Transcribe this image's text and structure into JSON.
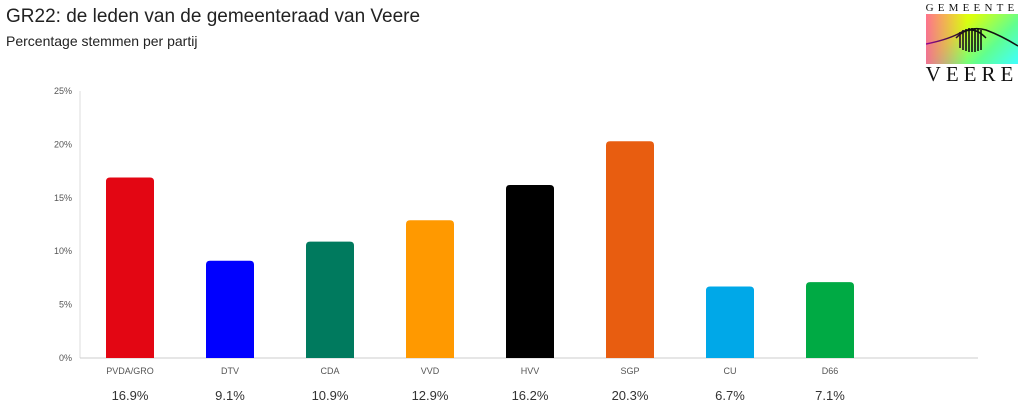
{
  "header": {
    "title": "GR22: de leden van de gemeenteraad van Veere",
    "subtitle": "Percentage stemmen per partij"
  },
  "logo": {
    "top_text": "GEMEENTE",
    "bottom_text": "VEERE"
  },
  "chart_data": {
    "type": "bar",
    "title": "GR22: de leden van de gemeenteraad van Veere",
    "subtitle": "Percentage stemmen per partij",
    "xlabel": "",
    "ylabel": "",
    "ylim": [
      0,
      25
    ],
    "yticks": [
      "0%",
      "5%",
      "10%",
      "15%",
      "20%",
      "25%"
    ],
    "ytick_values": [
      0,
      5,
      10,
      15,
      20,
      25
    ],
    "grid": false,
    "legend": "none",
    "categories": [
      "PVDA/GRO",
      "DTV",
      "CDA",
      "VVD",
      "HVV",
      "SGP",
      "CU",
      "D66"
    ],
    "values": [
      16.9,
      9.1,
      10.9,
      12.9,
      16.2,
      20.3,
      6.7,
      7.1
    ],
    "value_labels": [
      "16.9%",
      "9.1%",
      "10.9%",
      "12.9%",
      "16.2%",
      "20.3%",
      "6.7%",
      "7.1%"
    ],
    "colors": [
      "#e30613",
      "#0000ff",
      "#007a5e",
      "#ff9900",
      "#000000",
      "#e85d10",
      "#00a8e8",
      "#00aa44"
    ]
  }
}
